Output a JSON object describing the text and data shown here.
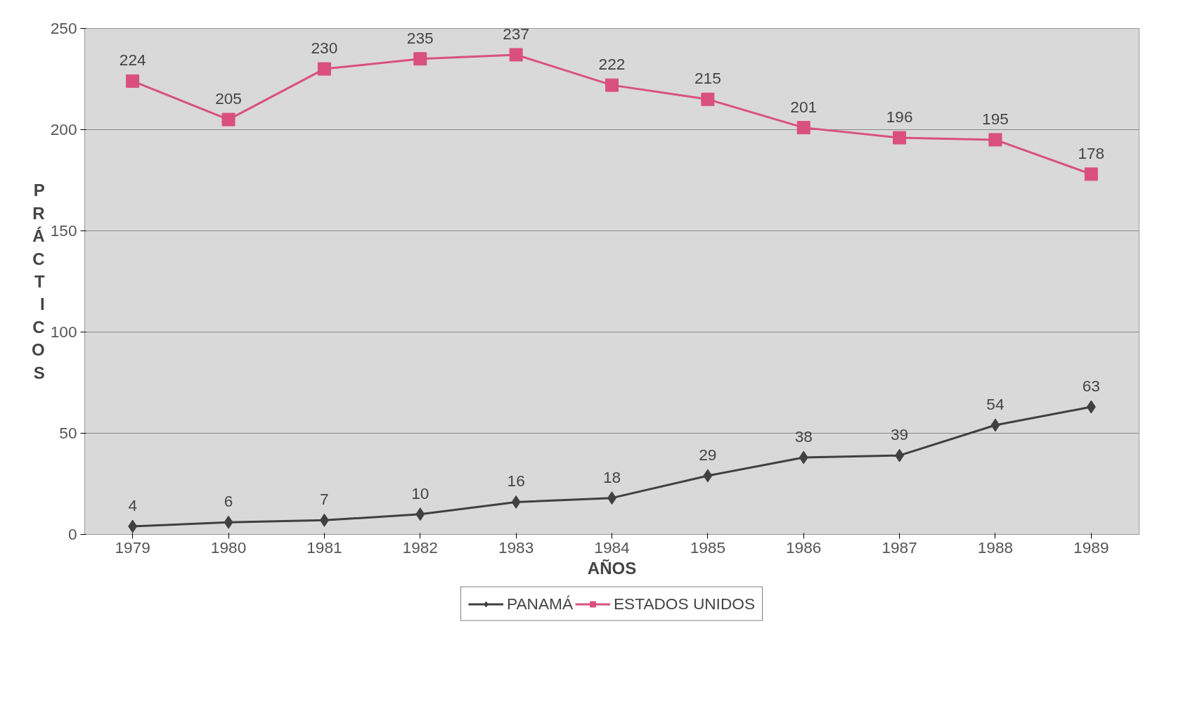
{
  "chart_data": {
    "type": "line",
    "xlabel": "AÑOS",
    "ylabel": "PRÁCTICOS",
    "categories": [
      "1979",
      "1980",
      "1981",
      "1982",
      "1983",
      "1984",
      "1985",
      "1986",
      "1987",
      "1988",
      "1989"
    ],
    "series": [
      {
        "name": "PANAMÁ",
        "color": "#404040",
        "marker": "diamond",
        "values": [
          4,
          6,
          7,
          10,
          16,
          18,
          29,
          38,
          39,
          54,
          63
        ]
      },
      {
        "name": "ESTADOS UNIDOS",
        "color": "#d9507f",
        "marker": "square",
        "values": [
          224,
          205,
          230,
          235,
          237,
          222,
          215,
          201,
          196,
          195,
          178
        ]
      }
    ],
    "ylim": [
      0,
      250
    ],
    "yticks": [
      0,
      50,
      100,
      150,
      200,
      250
    ],
    "grid": "y",
    "legend": "bottom",
    "data_labels": true
  }
}
